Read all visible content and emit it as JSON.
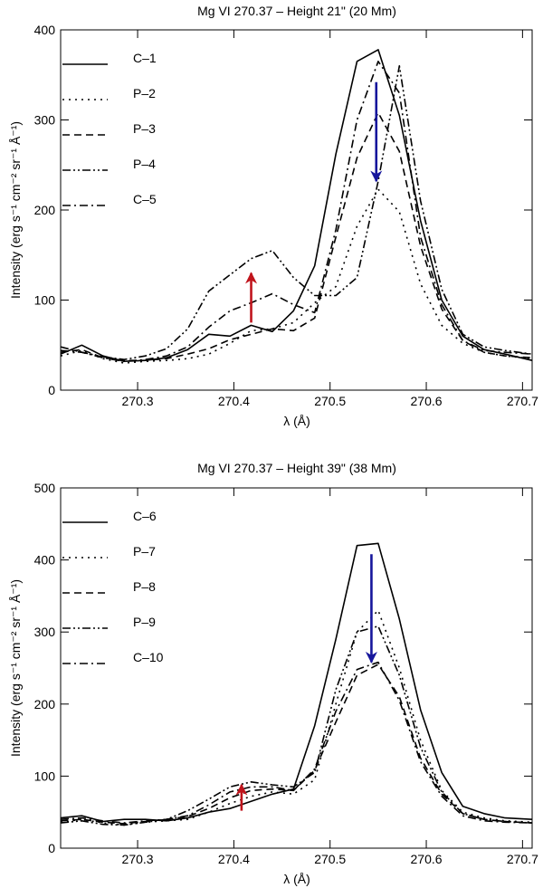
{
  "chart_data": [
    {
      "type": "line",
      "title": "Mg VI 270.37 – Height 21\" (20 Mm)",
      "xlabel": "λ (Å)",
      "ylabel": "Intensity (erg s⁻¹ cm⁻² sr⁻¹ Å⁻¹)",
      "xlim": [
        270.22,
        270.71
      ],
      "ylim": [
        0,
        400
      ],
      "xticks": [
        270.3,
        270.4,
        270.5,
        270.6,
        270.7
      ],
      "yticks": [
        0,
        100,
        200,
        300,
        400
      ],
      "legend_position": "top-left",
      "grid": false,
      "series": [
        {
          "name": "C–1",
          "dash": "solid",
          "points": [
            [
              270.22,
              40
            ],
            [
              270.242,
              50
            ],
            [
              270.264,
              38
            ],
            [
              270.286,
              32
            ],
            [
              270.308,
              33
            ],
            [
              270.33,
              36
            ],
            [
              270.352,
              45
            ],
            [
              270.374,
              62
            ],
            [
              270.396,
              60
            ],
            [
              270.418,
              72
            ],
            [
              270.44,
              65
            ],
            [
              270.462,
              88
            ],
            [
              270.484,
              138
            ],
            [
              270.506,
              262
            ],
            [
              270.528,
              365
            ],
            [
              270.55,
              378
            ],
            [
              270.572,
              305
            ],
            [
              270.594,
              188
            ],
            [
              270.616,
              100
            ],
            [
              270.638,
              60
            ],
            [
              270.66,
              45
            ],
            [
              270.682,
              40
            ],
            [
              270.71,
              33
            ]
          ]
        },
        {
          "name": "P–2",
          "dash": "dot",
          "points": [
            [
              270.22,
              38
            ],
            [
              270.242,
              44
            ],
            [
              270.264,
              35
            ],
            [
              270.286,
              30
            ],
            [
              270.308,
              32
            ],
            [
              270.33,
              33
            ],
            [
              270.352,
              35
            ],
            [
              270.374,
              40
            ],
            [
              270.396,
              52
            ],
            [
              270.418,
              66
            ],
            [
              270.44,
              68
            ],
            [
              270.462,
              75
            ],
            [
              270.484,
              97
            ],
            [
              270.506,
              115
            ],
            [
              270.528,
              182
            ],
            [
              270.55,
              223
            ],
            [
              270.572,
              198
            ],
            [
              270.594,
              118
            ],
            [
              270.616,
              72
            ],
            [
              270.638,
              52
            ],
            [
              270.66,
              42
            ],
            [
              270.682,
              38
            ],
            [
              270.71,
              35
            ]
          ]
        },
        {
          "name": "P–3",
          "dash": "dash",
          "points": [
            [
              270.22,
              42
            ],
            [
              270.242,
              45
            ],
            [
              270.264,
              36
            ],
            [
              270.286,
              33
            ],
            [
              270.308,
              33
            ],
            [
              270.33,
              35
            ],
            [
              270.352,
              40
            ],
            [
              270.374,
              46
            ],
            [
              270.396,
              56
            ],
            [
              270.418,
              62
            ],
            [
              270.44,
              68
            ],
            [
              270.462,
              66
            ],
            [
              270.484,
              80
            ],
            [
              270.506,
              170
            ],
            [
              270.528,
              258
            ],
            [
              270.55,
              308
            ],
            [
              270.572,
              265
            ],
            [
              270.594,
              160
            ],
            [
              270.616,
              90
            ],
            [
              270.638,
              55
            ],
            [
              270.66,
              42
            ],
            [
              270.682,
              38
            ],
            [
              270.71,
              36
            ]
          ]
        },
        {
          "name": "P–4",
          "dash": "dashdotdot",
          "points": [
            [
              270.22,
              48
            ],
            [
              270.242,
              42
            ],
            [
              270.264,
              37
            ],
            [
              270.286,
              34
            ],
            [
              270.308,
              38
            ],
            [
              270.33,
              46
            ],
            [
              270.352,
              68
            ],
            [
              270.374,
              110
            ],
            [
              270.396,
              128
            ],
            [
              270.418,
              146
            ],
            [
              270.44,
              155
            ],
            [
              270.462,
              125
            ],
            [
              270.484,
              105
            ],
            [
              270.506,
              105
            ],
            [
              270.528,
              125
            ],
            [
              270.55,
              232
            ],
            [
              270.572,
              360
            ],
            [
              270.594,
              210
            ],
            [
              270.616,
              112
            ],
            [
              270.638,
              62
            ],
            [
              270.66,
              48
            ],
            [
              270.682,
              44
            ],
            [
              270.71,
              40
            ]
          ]
        },
        {
          "name": "C–5",
          "dash": "dashdot",
          "points": [
            [
              270.22,
              44
            ],
            [
              270.242,
              42
            ],
            [
              270.264,
              36
            ],
            [
              270.286,
              32
            ],
            [
              270.308,
              34
            ],
            [
              270.33,
              38
            ],
            [
              270.352,
              48
            ],
            [
              270.374,
              70
            ],
            [
              270.396,
              88
            ],
            [
              270.418,
              97
            ],
            [
              270.44,
              107
            ],
            [
              270.462,
              95
            ],
            [
              270.484,
              86
            ],
            [
              270.506,
              178
            ],
            [
              270.528,
              300
            ],
            [
              270.55,
              365
            ],
            [
              270.572,
              330
            ],
            [
              270.594,
              170
            ],
            [
              270.616,
              95
            ],
            [
              270.638,
              55
            ],
            [
              270.66,
              44
            ],
            [
              270.682,
              42
            ],
            [
              270.71,
              40
            ]
          ]
        }
      ],
      "arrows": [
        {
          "color": "#c0141c",
          "x": 270.418,
          "y_from": 75,
          "y_to": 130
        },
        {
          "color": "#16169c",
          "x": 270.548,
          "y_from": 342,
          "y_to": 232
        }
      ]
    },
    {
      "type": "line",
      "title": "Mg VI 270.37 – Height 39\" (38 Mm)",
      "xlabel": "λ (Å)",
      "ylabel": "Intensity (erg s⁻¹ cm⁻² sr⁻¹ Å⁻¹)",
      "xlim": [
        270.22,
        270.71
      ],
      "ylim": [
        0,
        500
      ],
      "xticks": [
        270.3,
        270.4,
        270.5,
        270.6,
        270.7
      ],
      "yticks": [
        0,
        100,
        200,
        300,
        400,
        500
      ],
      "legend_position": "top-left",
      "grid": false,
      "series": [
        {
          "name": "C–6",
          "dash": "solid",
          "points": [
            [
              270.22,
              42
            ],
            [
              270.242,
              45
            ],
            [
              270.264,
              37
            ],
            [
              270.286,
              40
            ],
            [
              270.308,
              40
            ],
            [
              270.33,
              38
            ],
            [
              270.352,
              42
            ],
            [
              270.374,
              50
            ],
            [
              270.396,
              55
            ],
            [
              270.418,
              65
            ],
            [
              270.44,
              75
            ],
            [
              270.462,
              82
            ],
            [
              270.484,
              170
            ],
            [
              270.506,
              290
            ],
            [
              270.528,
              420
            ],
            [
              270.55,
              423
            ],
            [
              270.572,
              318
            ],
            [
              270.594,
              192
            ],
            [
              270.616,
              105
            ],
            [
              270.638,
              58
            ],
            [
              270.66,
              48
            ],
            [
              270.682,
              42
            ],
            [
              270.71,
              40
            ]
          ]
        },
        {
          "name": "P–7",
          "dash": "dot",
          "points": [
            [
              270.22,
              36
            ],
            [
              270.242,
              40
            ],
            [
              270.264,
              35
            ],
            [
              270.286,
              32
            ],
            [
              270.308,
              36
            ],
            [
              270.33,
              38
            ],
            [
              270.352,
              40
            ],
            [
              270.374,
              50
            ],
            [
              270.396,
              62
            ],
            [
              270.418,
              72
            ],
            [
              270.44,
              78
            ],
            [
              270.462,
              75
            ],
            [
              270.484,
              95
            ],
            [
              270.506,
              200
            ],
            [
              270.528,
              300
            ],
            [
              270.55,
              330
            ],
            [
              270.572,
              250
            ],
            [
              270.594,
              150
            ],
            [
              270.616,
              80
            ],
            [
              270.638,
              50
            ],
            [
              270.66,
              42
            ],
            [
              270.682,
              38
            ],
            [
              270.71,
              36
            ]
          ]
        },
        {
          "name": "P–8",
          "dash": "dash",
          "points": [
            [
              270.22,
              38
            ],
            [
              270.242,
              40
            ],
            [
              270.264,
              36
            ],
            [
              270.286,
              34
            ],
            [
              270.308,
              37
            ],
            [
              270.33,
              40
            ],
            [
              270.352,
              44
            ],
            [
              270.374,
              55
            ],
            [
              270.396,
              70
            ],
            [
              270.418,
              80
            ],
            [
              270.44,
              82
            ],
            [
              270.462,
              80
            ],
            [
              270.484,
              108
            ],
            [
              270.506,
              175
            ],
            [
              270.528,
              240
            ],
            [
              270.55,
              255
            ],
            [
              270.572,
              210
            ],
            [
              270.594,
              125
            ],
            [
              270.616,
              75
            ],
            [
              270.638,
              48
            ],
            [
              270.66,
              40
            ],
            [
              270.682,
              37
            ],
            [
              270.71,
              35
            ]
          ]
        },
        {
          "name": "P–9",
          "dash": "dashdotdot",
          "points": [
            [
              270.22,
              35
            ],
            [
              270.242,
              38
            ],
            [
              270.264,
              33
            ],
            [
              270.286,
              32
            ],
            [
              270.308,
              36
            ],
            [
              270.33,
              40
            ],
            [
              270.352,
              52
            ],
            [
              270.374,
              68
            ],
            [
              270.396,
              85
            ],
            [
              270.418,
              92
            ],
            [
              270.44,
              88
            ],
            [
              270.462,
              85
            ],
            [
              270.484,
              105
            ],
            [
              270.506,
              220
            ],
            [
              270.528,
              300
            ],
            [
              270.55,
              308
            ],
            [
              270.572,
              240
            ],
            [
              270.594,
              140
            ],
            [
              270.616,
              78
            ],
            [
              270.638,
              48
            ],
            [
              270.66,
              40
            ],
            [
              270.682,
              37
            ],
            [
              270.71,
              35
            ]
          ]
        },
        {
          "name": "C–10",
          "dash": "dashdot",
          "points": [
            [
              270.22,
              40
            ],
            [
              270.242,
              42
            ],
            [
              270.264,
              38
            ],
            [
              270.286,
              35
            ],
            [
              270.308,
              38
            ],
            [
              270.33,
              40
            ],
            [
              270.352,
              45
            ],
            [
              270.374,
              60
            ],
            [
              270.396,
              78
            ],
            [
              270.418,
              85
            ],
            [
              270.44,
              85
            ],
            [
              270.462,
              80
            ],
            [
              270.484,
              110
            ],
            [
              270.506,
              190
            ],
            [
              270.528,
              248
            ],
            [
              270.55,
              258
            ],
            [
              270.572,
              205
            ],
            [
              270.594,
              120
            ],
            [
              270.616,
              72
            ],
            [
              270.638,
              45
            ],
            [
              270.66,
              38
            ],
            [
              270.682,
              36
            ],
            [
              270.71,
              35
            ]
          ]
        }
      ],
      "arrows": [
        {
          "color": "#c0141c",
          "x": 270.408,
          "y_from": 52,
          "y_to": 88
        },
        {
          "color": "#16169c",
          "x": 270.543,
          "y_from": 408,
          "y_to": 258
        }
      ]
    }
  ]
}
